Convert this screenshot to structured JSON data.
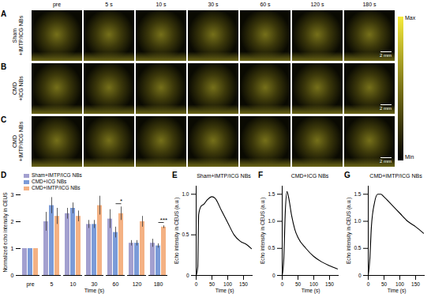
{
  "image_panels": {
    "time_labels": [
      "pre",
      "5 s",
      "10 s",
      "30 s",
      "60 s",
      "120 s",
      "180 s"
    ],
    "rows": [
      {
        "panel": "A",
        "name_lines": [
          "Sham",
          "+IMTP/ICG NBs"
        ]
      },
      {
        "panel": "B",
        "name_lines": [
          "CMD",
          "+ICG NBs"
        ]
      },
      {
        "panel": "C",
        "name_lines": [
          "CMD",
          "+IMTP/ICG NBs"
        ]
      }
    ],
    "scale_bar": "2 mm",
    "colorbar": {
      "max_label": "Max",
      "min_label": "Min"
    }
  },
  "chart_data": [
    {
      "panel": "D",
      "type": "bar",
      "x_label": "Time (s)",
      "y_label": "Normalized echo intensity in CEUS",
      "categories": [
        "pre",
        "5",
        "10",
        "30",
        "60",
        "120",
        "180"
      ],
      "series": [
        {
          "name": "Sham+IMTP/ICG NBs",
          "color": "#a3a0cf",
          "values": [
            1,
            2.0,
            2.3,
            1.9,
            2.1,
            1.2,
            1.2
          ],
          "errors": [
            0,
            0.35,
            0.2,
            0.15,
            0.35,
            0.1,
            0.15
          ]
        },
        {
          "name": "CMD+ICG NBs",
          "color": "#7b9bd8",
          "values": [
            1,
            2.6,
            2.5,
            1.9,
            1.6,
            1.2,
            1.1
          ],
          "errors": [
            0,
            0.3,
            0.2,
            0.15,
            0.2,
            0.1,
            0.08
          ]
        },
        {
          "name": "CMD+IMTP/ICG NBs",
          "color": "#f4b183",
          "values": [
            1,
            2.2,
            2.2,
            2.6,
            2.3,
            2.0,
            1.8
          ],
          "errors": [
            0,
            0.3,
            0.2,
            0.35,
            0.25,
            0.2,
            0.05
          ]
        }
      ],
      "significance": [
        {
          "category": "60",
          "between": [
            "CMD+ICG NBs",
            "CMD+IMTP/ICG NBs"
          ],
          "label": "*"
        },
        {
          "category": "180",
          "between": [
            "CMD+ICG NBs",
            "CMD+IMTP/ICG NBs"
          ],
          "label": "***"
        }
      ],
      "ylim": [
        0,
        3
      ],
      "yticks": [
        0,
        1,
        2,
        3
      ],
      "legend": "top"
    },
    {
      "panel": "E",
      "type": "line",
      "title": "Sham+IMTP/ICG NBs",
      "x_label": "Time (s)",
      "y_label": "Echo intensity in CEUS (a.u.)",
      "x": [
        0,
        5,
        8,
        15,
        25,
        35,
        50,
        60,
        80,
        100,
        120,
        140,
        160,
        175
      ],
      "values": [
        0,
        0.1,
        0.75,
        0.85,
        0.88,
        0.93,
        0.97,
        0.95,
        0.8,
        0.65,
        0.5,
        0.42,
        0.38,
        0.33
      ],
      "color": "#000000",
      "xlim": [
        0,
        180
      ],
      "xticks": [
        0,
        50,
        100,
        150
      ],
      "ylim": [
        0,
        1.1
      ],
      "yticks": [
        0,
        0.5,
        {
          "value": 1,
          "label": "1.0"
        }
      ]
    },
    {
      "panel": "F",
      "type": "line",
      "title": "CMD+ICG NBs",
      "x_label": "Time (s)",
      "y_label": "Echo intensity in CEUS (a.u.)",
      "x": [
        0,
        5,
        10,
        15,
        20,
        30,
        40,
        50,
        75,
        100,
        125,
        150,
        175
      ],
      "values": [
        0,
        0.3,
        1.2,
        1.55,
        1.45,
        1.1,
        0.85,
        0.7,
        0.5,
        0.35,
        0.25,
        0.18,
        0.12
      ],
      "color": "#000000",
      "xlim": [
        0,
        180
      ],
      "xticks": [
        0,
        50,
        100,
        150
      ],
      "ylim": [
        0,
        1.65
      ],
      "yticks": [
        0,
        0.5,
        {
          "value": 1,
          "label": "1.0"
        },
        1.5
      ]
    },
    {
      "panel": "G",
      "type": "line",
      "title": "CMD+IMTP/ICG NBs",
      "x_label": "Time (s)",
      "y_label": "Echo intensity in CEUS (a.u.)",
      "x": [
        0,
        5,
        10,
        20,
        30,
        40,
        50,
        75,
        100,
        125,
        150,
        175
      ],
      "values": [
        0,
        0.3,
        0.9,
        1.35,
        1.5,
        1.5,
        1.45,
        1.3,
        1.15,
        1.0,
        0.9,
        0.78
      ],
      "color": "#000000",
      "xlim": [
        0,
        180
      ],
      "xticks": [
        0,
        50,
        100,
        150
      ],
      "ylim": [
        0,
        1.65
      ],
      "yticks": [
        0,
        0.5,
        {
          "value": 1,
          "label": "1.0"
        },
        1.5
      ]
    }
  ]
}
